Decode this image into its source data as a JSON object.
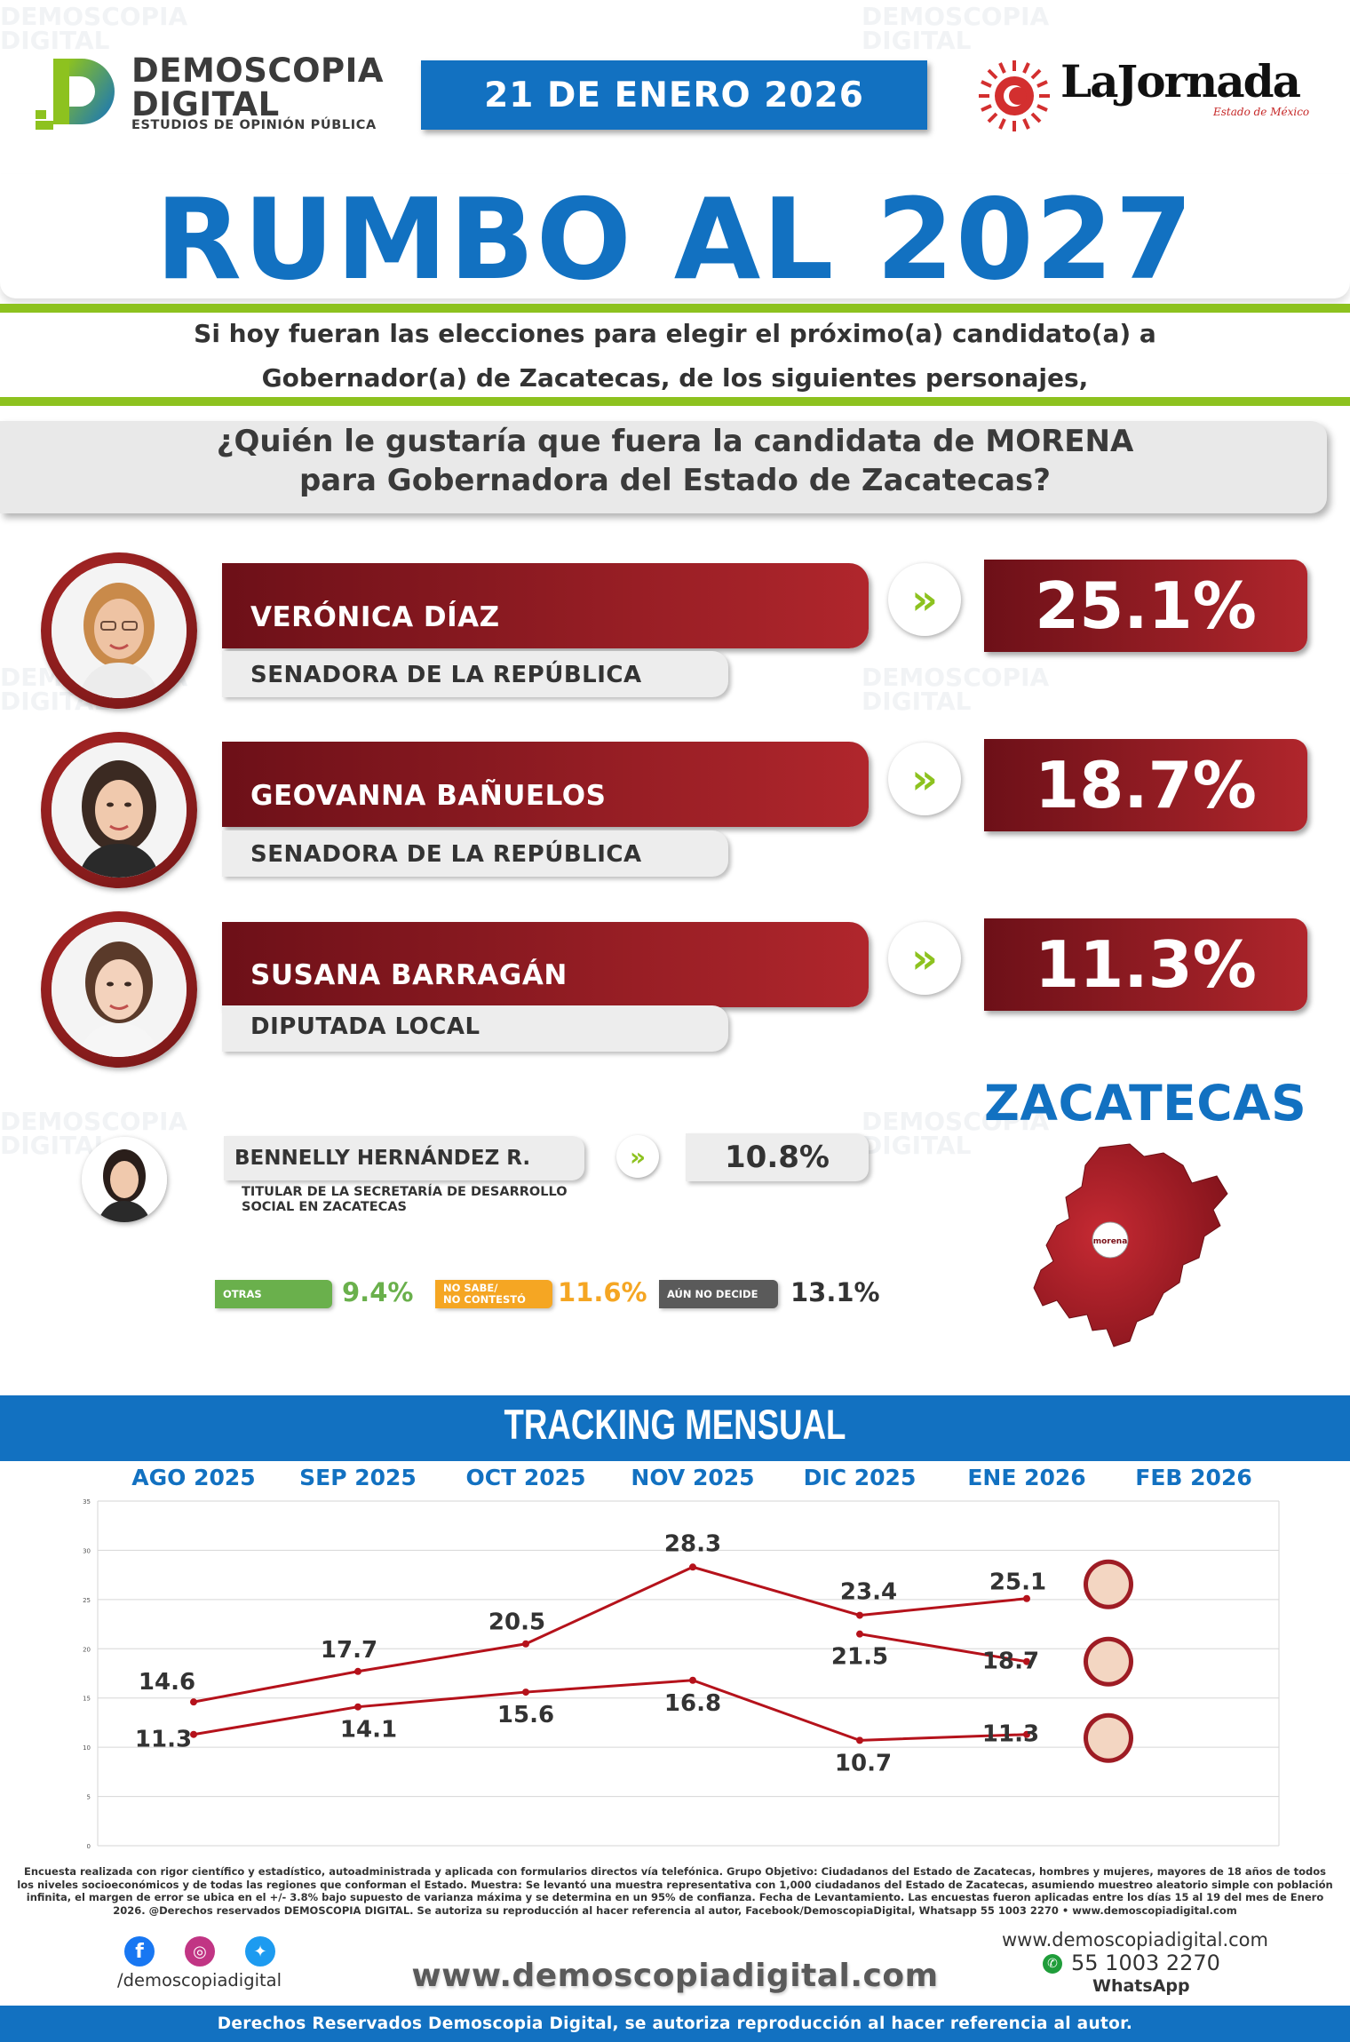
{
  "watermark": {
    "line1": "DEMOSCOPIA",
    "line2": "DIGITAL",
    "line3": "ESTUDIOS DE OPINIÓN PÚBLICA"
  },
  "header": {
    "logo_line1": "DEMOSCOPIA",
    "logo_line2": "DIGITAL",
    "logo_tagline": "ESTUDIOS DE OPINIÓN PÚBLICA",
    "date": "21 DE ENERO 2026",
    "partner_name": "LaJornada",
    "partner_sub": "Estado de México"
  },
  "title": "RUMBO AL 2027",
  "intro_line1": "Si hoy fueran las elecciones para elegir el próximo(a) candidato(a) a",
  "intro_line2": "Gobernador(a) de Zacatecas, de los siguientes personajes,",
  "question_line1": "¿Quién le gustaría que fuera la candidata de MORENA",
  "question_line2": "para Gobernadora del Estado de Zacatecas?",
  "candidates": [
    {
      "name": "VERÓNICA DÍAZ",
      "role": "SENADORA DE LA REPÚBLICA",
      "pct": "25.1%"
    },
    {
      "name": "GEOVANNA BAÑUELOS",
      "role": "SENADORA DE LA REPÚBLICA",
      "pct": "18.7%"
    },
    {
      "name": "SUSANA BARRAGÁN",
      "role": "DIPUTADA LOCAL",
      "pct": "11.3%"
    }
  ],
  "minor_candidate": {
    "name": "BENNELLY HERNÁNDEZ R.",
    "role_line1": "TITULAR DE LA SECRETARÍA DE DESARROLLO",
    "role_line2": "SOCIAL EN ZACATECAS",
    "pct": "10.8%"
  },
  "others": [
    {
      "label": "OTRAS",
      "label2": "",
      "value": "9.4%",
      "color": "#6ab04c"
    },
    {
      "label": "NO SABE/",
      "label2": "NO CONTESTÓ",
      "value": "11.6%",
      "color": "#f5a623"
    },
    {
      "label": "AÚN NO DECIDE",
      "label2": "",
      "value": "13.1%",
      "color": "#5a5a5a"
    }
  ],
  "state": {
    "name": "ZACATECAS",
    "map_label": "morena"
  },
  "tracking_title": "TRACKING MENSUAL",
  "chart_data": {
    "type": "line",
    "title": "TRACKING MENSUAL",
    "categories": [
      "AGO 2025",
      "SEP 2025",
      "OCT 2025",
      "NOV 2025",
      "DIC 2025",
      "ENE 2026",
      "FEB 2026"
    ],
    "ylim": [
      0,
      35
    ],
    "yticks": [
      0,
      5,
      10,
      15,
      20,
      25,
      30,
      35
    ],
    "grid": true,
    "series": [
      {
        "values": [
          14.6,
          17.7,
          20.5,
          28.3,
          23.4,
          25.1,
          null
        ],
        "color": "#b5121b"
      },
      {
        "values": [
          null,
          null,
          null,
          null,
          21.5,
          18.7,
          null
        ],
        "color": "#b5121b"
      },
      {
        "values": [
          11.3,
          14.1,
          15.6,
          16.8,
          10.7,
          11.3,
          null
        ],
        "color": "#b5121b"
      }
    ]
  },
  "footnote": "Encuesta realizada con rigor científico y estadístico, autoadministrada y aplicada con formularios directos vía telefónica. Grupo Objetivo: Ciudadanos del Estado de Zacatecas, hombres y mujeres, mayores de 18 años de todos los niveles socioeconómicos y de todas las regiones que conforman el Estado. Muestra: Se levantó una muestra representativa con 1,000 ciudadanos del Estado de Zacatecas, asumiendo muestreo aleatorio simple con población infinita, el margen de error se ubica en el +/- 3.8% bajo supuesto de varianza máxima y se determina en un 95% de confianza. Fecha de Levantamiento. Las encuestas fueron aplicadas entre los días 15 al 19 del mes de Enero 2026. @Derechos reservados DEMOSCOPIA DIGITAL. Se autoriza su reproducción al hacer referencia al autor, Facebook/DemoscopiaDigital, Whatsapp 55 1003 2270 • www.demoscopiadigital.com",
  "footer": {
    "social_handle": "/demoscopiadigital",
    "website": "www.demoscopiadigital.com",
    "website_small": "www.demoscopiadigital.com",
    "whatsapp_number": "55 1003 2270",
    "whatsapp_label": "WhatsApp",
    "rights": "Derechos Reservados Demoscopia Digital, se autoriza reproducción al hacer referencia al autor."
  },
  "colors": {
    "blue": "#1271c1",
    "green": "#8dc21f",
    "maroon": "#a0222a"
  }
}
